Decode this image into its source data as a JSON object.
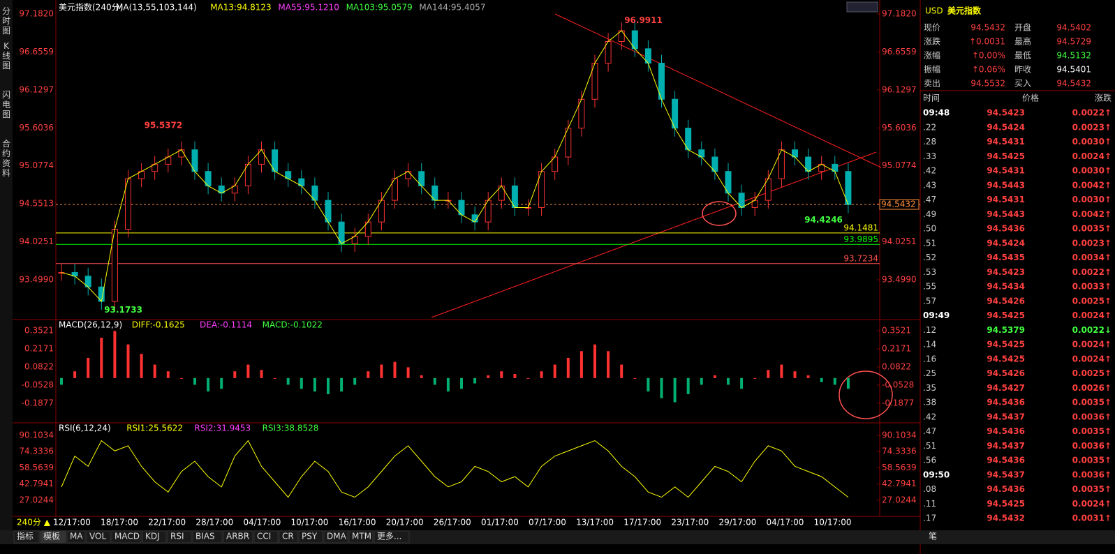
{
  "sidebar": [
    "分时图",
    "K线图",
    "闪电图",
    "合约资料"
  ],
  "main": {
    "title": "美元指数(240分)",
    "ma": "MA(13,55,103,144)",
    "ma13": "MA13:94.8123",
    "ma55": "MA55:95.1210",
    "ma103": "MA103:95.0579",
    "ma144": "MA144:95.4057",
    "ticks": [
      {
        "value": 97.182,
        "label": "97.1820"
      },
      {
        "value": 96.6559,
        "label": "96.6559"
      },
      {
        "value": 96.1297,
        "label": "96.1297"
      },
      {
        "value": 95.6036,
        "label": "95.6036"
      },
      {
        "value": 95.0774,
        "label": "95.0774"
      },
      {
        "value": 94.5513,
        "label": "94.5513"
      },
      {
        "value": 94.0251,
        "label": "94.0251"
      },
      {
        "value": 93.499,
        "label": "93.4990"
      }
    ],
    "closes": [
      93.6,
      93.55,
      93.4,
      93.2,
      94.2,
      94.9,
      95.0,
      95.1,
      95.2,
      95.3,
      95.0,
      94.8,
      94.7,
      94.8,
      95.1,
      95.3,
      95.0,
      94.9,
      94.8,
      94.6,
      94.3,
      94.0,
      94.1,
      94.3,
      94.6,
      94.9,
      95.0,
      94.8,
      94.6,
      94.6,
      94.4,
      94.3,
      94.6,
      94.8,
      94.5,
      94.5,
      95.0,
      95.2,
      95.6,
      96.0,
      96.5,
      96.8,
      96.95,
      96.7,
      96.5,
      96.0,
      95.6,
      95.3,
      95.2,
      95.0,
      94.7,
      94.5,
      94.6,
      94.9,
      95.3,
      95.2,
      95.0,
      95.1,
      95.0,
      94.54
    ],
    "annotations": [
      {
        "text": "95.5372",
        "value": 95.5372,
        "index": 6
      },
      {
        "text": "93.1733",
        "value": 93.1733,
        "index": 3
      },
      {
        "text": "96.9911",
        "value": 96.9911,
        "index": 42
      },
      {
        "text": "94.4246",
        "value": 94.4246,
        "index": 59
      }
    ],
    "levels": [
      {
        "value": 94.1481,
        "label": "94.1481",
        "color": "#ffff00"
      },
      {
        "value": 93.9895,
        "label": "93.9895",
        "color": "#00ff00"
      },
      {
        "value": 93.7234,
        "label": "93.7234",
        "color": "#ff5050"
      }
    ],
    "last": {
      "value": 94.5432,
      "label": "94.5432"
    }
  },
  "macd": {
    "title": "MACD(26,12,9)",
    "diff": "DIFF:-0.1625",
    "dea": "DEA:-0.1114",
    "macd": "MACD:-0.1022",
    "ticks": [
      {
        "value": 0.3521,
        "label": "0.3521"
      },
      0.2171,
      {
        "value": 0.0822,
        "label": "0.0822"
      },
      -0.0528,
      -0.1877
    ],
    "bars": [
      -0.05,
      0.05,
      0.15,
      0.3,
      0.35,
      0.25,
      0.18,
      0.1,
      0.05,
      0.0,
      -0.05,
      -0.1,
      -0.08,
      0.05,
      0.1,
      0.06,
      0.0,
      -0.05,
      -0.08,
      -0.1,
      -0.12,
      -0.1,
      -0.05,
      0.05,
      0.1,
      0.12,
      0.08,
      0.02,
      -0.05,
      -0.1,
      -0.08,
      -0.04,
      0.02,
      0.05,
      0.03,
      0.0,
      0.05,
      0.1,
      0.15,
      0.2,
      0.25,
      0.2,
      0.1,
      0.0,
      -0.1,
      -0.15,
      -0.18,
      -0.12,
      -0.05,
      0.02,
      -0.05,
      -0.08,
      0.0,
      0.06,
      0.1,
      0.05,
      0.02,
      -0.03,
      -0.05,
      -0.08
    ]
  },
  "rsi": {
    "title": "RSI(6,12,24)",
    "rsi1": "RSI1:25.5622",
    "rsi2": "RSI2:31.9453",
    "rsi3": "RSI3:38.8528",
    "ticks": [
      90.1034,
      74.3336,
      58.5639,
      42.7941,
      27.0244
    ],
    "values": [
      40,
      70,
      60,
      85,
      75,
      80,
      60,
      45,
      35,
      55,
      65,
      50,
      40,
      70,
      85,
      60,
      45,
      30,
      50,
      65,
      55,
      35,
      30,
      40,
      55,
      70,
      80,
      65,
      50,
      40,
      45,
      60,
      55,
      45,
      50,
      40,
      60,
      70,
      75,
      80,
      85,
      75,
      60,
      50,
      35,
      30,
      40,
      30,
      45,
      60,
      55,
      45,
      65,
      80,
      75,
      60,
      55,
      50,
      40,
      30
    ]
  },
  "dates": [
    "12/17:00",
    "18/17:00",
    "22/17:00",
    "28/17:00",
    "04/17:00",
    "10/17:00",
    "16/17:00",
    "20/17:00",
    "26/17:00",
    "01/17:00",
    "07/17:00",
    "13/17:00",
    "17/17:00",
    "23/17:00",
    "29/17:00",
    "04/17:00",
    "10/17:00"
  ],
  "period": "240分 ▲",
  "tabs": [
    "指标",
    "模板",
    "MA",
    "VOL",
    "MACD",
    "KDJ",
    "RSI",
    "BIAS",
    "ARBR",
    "CCI",
    "CR",
    "PSY",
    "DMA",
    "MTM",
    "更多..."
  ],
  "pen": "笔",
  "quote": {
    "code": "USD",
    "name": "美元指数",
    "rows": [
      [
        {
          "label": "现价",
          "value": "94.5432",
          "color": "#ff4040"
        },
        {
          "label": "开盘",
          "value": "94.5402",
          "color": "#ff4040"
        }
      ],
      [
        {
          "label": "涨跌",
          "value": "↑0.0031",
          "color": "#ff4040"
        },
        {
          "label": "最高",
          "value": "94.5729",
          "color": "#ff4040"
        }
      ],
      [
        {
          "label": "涨幅",
          "value": "↑0.00%",
          "color": "#ff4040"
        },
        {
          "label": "最低",
          "value": "94.5132",
          "color": "#40ff40"
        }
      ],
      [
        {
          "label": "振幅",
          "value": "↑0.06%",
          "color": "#ff4040"
        },
        {
          "label": "昨收",
          "value": "94.5401",
          "color": "#ffffff"
        }
      ],
      [
        {
          "label": "卖出",
          "value": "94.5532",
          "color": "#ff4040"
        },
        {
          "label": "买入",
          "value": "94.5432",
          "color": "#ff4040"
        }
      ]
    ]
  },
  "ticklist": {
    "headers": [
      "时间",
      "价格",
      "涨跌"
    ],
    "rows": [
      [
        "09:48",
        "94.5423",
        "0.0022↑"
      ],
      [
        ".22",
        "94.5424",
        "0.0023↑"
      ],
      [
        ".28",
        "94.5431",
        "0.0030↑"
      ],
      [
        ".33",
        "94.5425",
        "0.0024↑"
      ],
      [
        ".42",
        "94.5431",
        "0.0030↑"
      ],
      [
        ".43",
        "94.5443",
        "0.0042↑"
      ],
      [
        ".47",
        "94.5431",
        "0.0030↑"
      ],
      [
        ".49",
        "94.5443",
        "0.0042↑"
      ],
      [
        ".50",
        "94.5436",
        "0.0035↑"
      ],
      [
        ".51",
        "94.5424",
        "0.0023↑"
      ],
      [
        ".52",
        "94.5435",
        "0.0034↑"
      ],
      [
        ".53",
        "94.5423",
        "0.0022↑"
      ],
      [
        ".55",
        "94.5434",
        "0.0033↑"
      ],
      [
        ".57",
        "94.5426",
        "0.0025↑"
      ],
      [
        "09:49",
        "94.5425",
        "0.0024↑"
      ],
      [
        ".12",
        "94.5379",
        "0.0022↓"
      ],
      [
        ".14",
        "94.5425",
        "0.0024↑"
      ],
      [
        ".16",
        "94.5425",
        "0.0024↑"
      ],
      [
        ".25",
        "94.5426",
        "0.0025↑"
      ],
      [
        ".35",
        "94.5427",
        "0.0026↑"
      ],
      [
        ".38",
        "94.5436",
        "0.0035↑"
      ],
      [
        ".42",
        "94.5437",
        "0.0036↑"
      ],
      [
        ".47",
        "94.5436",
        "0.0035↑"
      ],
      [
        ".51",
        "94.5437",
        "0.0036↑"
      ],
      [
        ".56",
        "94.5436",
        "0.0035↑"
      ],
      [
        "09:50",
        "94.5437",
        "0.0036↑"
      ],
      [
        ".08",
        "94.5436",
        "0.0035↑"
      ],
      [
        ".11",
        "94.5425",
        "0.0024↑"
      ],
      [
        ".17",
        "94.5432",
        "0.0031↑"
      ]
    ]
  }
}
